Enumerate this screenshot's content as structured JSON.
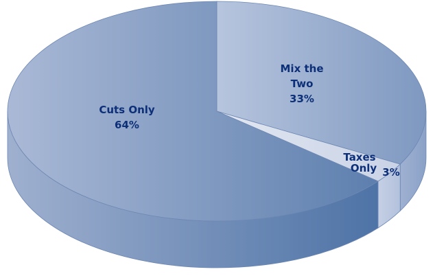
{
  "chart_data": {
    "type": "pie",
    "style": "3d",
    "slices": [
      {
        "label_lines": [
          "Cuts Only"
        ],
        "pct_text": "64%",
        "value": 64
      },
      {
        "label_lines": [
          "Mix the",
          "Two"
        ],
        "pct_text": "33%",
        "value": 33
      },
      {
        "label_lines": [
          "Taxes",
          "Only"
        ],
        "pct_text": "3%",
        "value": 3
      }
    ]
  }
}
